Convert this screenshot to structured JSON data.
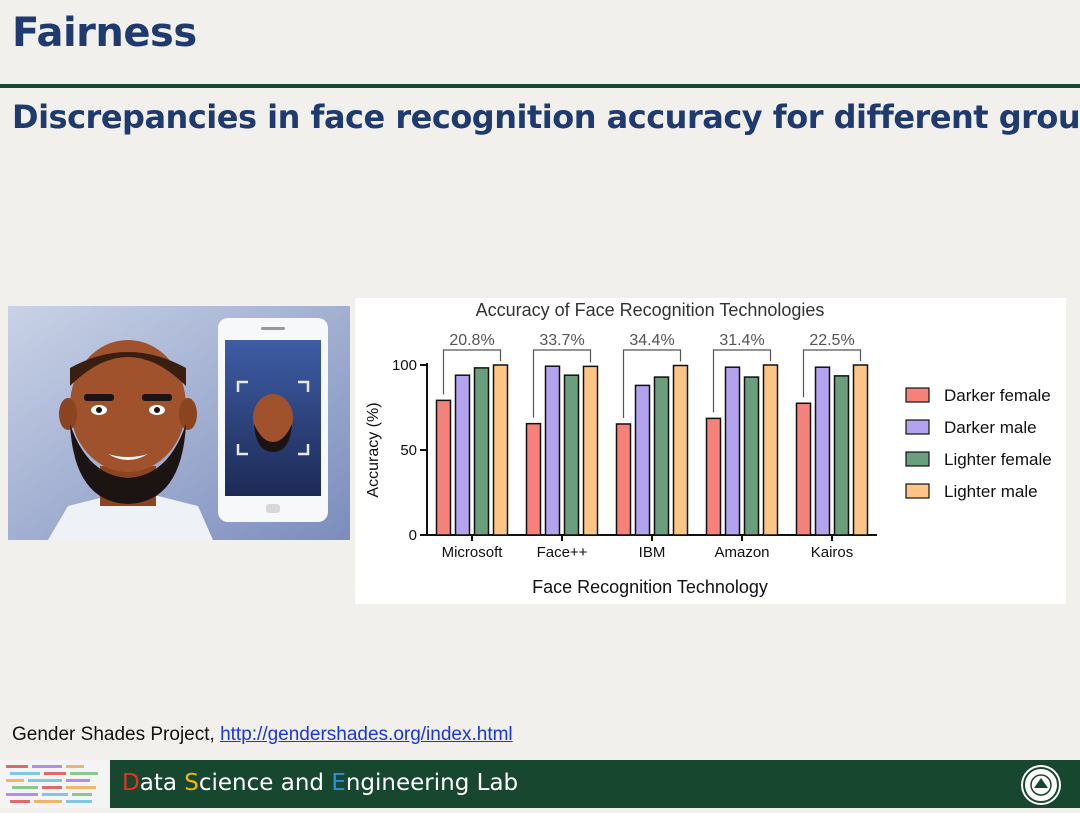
{
  "slide": {
    "title": "Fairness",
    "subtitle": "Discrepancies in face recognition accuracy for different groups",
    "source_prefix": "Gender Shades Project, ",
    "source_link": "http://gendershades.org/index.html",
    "footer": {
      "d": "D",
      "r1": "ata ",
      "s": "S",
      "r2": "cience and ",
      "e": "E",
      "r3": "ngineering Lab"
    }
  },
  "colors": {
    "title": "#1e3a6e",
    "footer_bg": "#17472f"
  },
  "chart_data": {
    "type": "bar",
    "title": "Accuracy of Face Recognition Technologies",
    "xlabel": "Face Recognition Technology",
    "ylabel": "Accuracy (%)",
    "ylim": [
      0,
      100
    ],
    "yticks": [
      "0",
      "50",
      "100"
    ],
    "categories": [
      "Microsoft",
      "Face++",
      "IBM",
      "Amazon",
      "Kairos"
    ],
    "gap_labels": [
      "20.8%",
      "33.7%",
      "34.4%",
      "31.4%",
      "22.5%"
    ],
    "legend_position": "right",
    "series": [
      {
        "name": "Darker female",
        "color": "#f4827a",
        "values": [
          79.2,
          65.5,
          65.3,
          68.6,
          77.5
        ]
      },
      {
        "name": "Darker male",
        "color": "#b3a3ee",
        "values": [
          94.0,
          99.3,
          88.0,
          98.7,
          98.7
        ]
      },
      {
        "name": "Lighter female",
        "color": "#6a9e7d",
        "values": [
          98.3,
          94.0,
          92.9,
          92.9,
          93.6
        ]
      },
      {
        "name": "Lighter male",
        "color": "#fcc585",
        "values": [
          100,
          99.2,
          99.7,
          100,
          100
        ]
      }
    ]
  }
}
